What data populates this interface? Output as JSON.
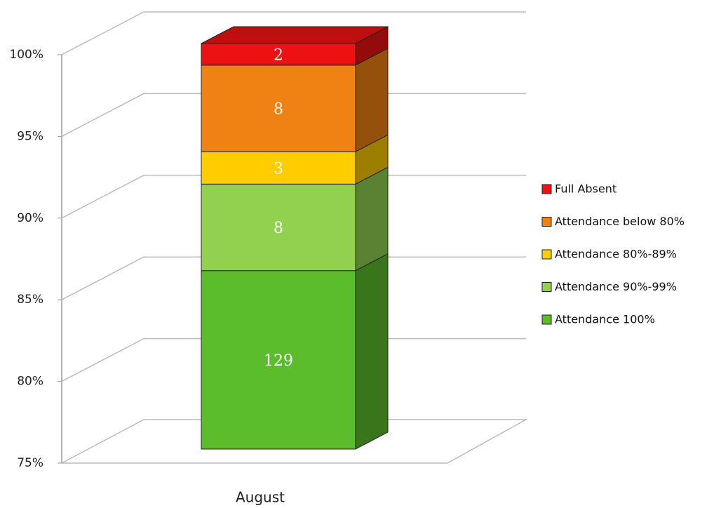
{
  "chart_data": {
    "type": "bar",
    "stacking": "percent",
    "categories": [
      "August"
    ],
    "series": [
      {
        "name": "Attendance 100%",
        "color": "#5bbd2b",
        "values": [
          129
        ]
      },
      {
        "name": "Attendance 90%-99%",
        "color": "#92d050",
        "values": [
          8
        ]
      },
      {
        "name": "Attendance 80%-89%",
        "color": "#ffcc00",
        "values": [
          3
        ]
      },
      {
        "name": "Attendance below 80%",
        "color": "#f08214",
        "values": [
          8
        ]
      },
      {
        "name": "Full Absent",
        "color": "#ee1111",
        "values": [
          2
        ]
      }
    ],
    "ylim": [
      75,
      100
    ],
    "yticks": [
      {
        "value": 75,
        "label": "75%"
      },
      {
        "value": 80,
        "label": "80%"
      },
      {
        "value": 85,
        "label": "85%"
      },
      {
        "value": 90,
        "label": "90%"
      },
      {
        "value": 95,
        "label": "95%"
      },
      {
        "value": 100,
        "label": "100%"
      }
    ],
    "grid": true,
    "legend": "right"
  }
}
